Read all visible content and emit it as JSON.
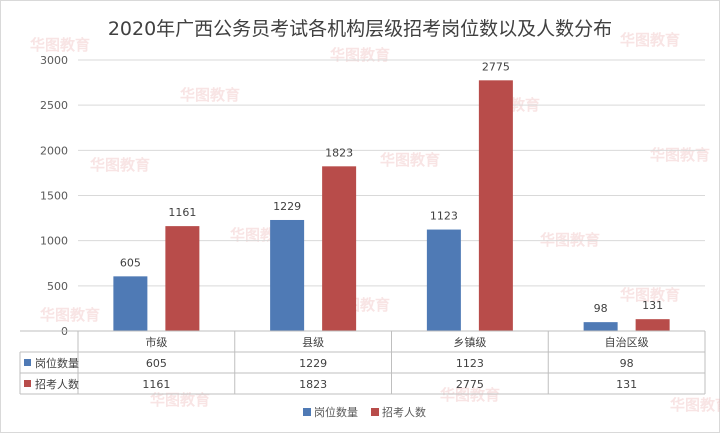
{
  "chart_data": {
    "type": "bar",
    "title": "2020年广西公务员考试各机构层级招考岗位数以及人数分布",
    "categories": [
      "市级",
      "县级",
      "乡镇级",
      "自治区级"
    ],
    "series": [
      {
        "name": "岗位数量",
        "values": [
          605,
          1229,
          1123,
          98
        ],
        "color": "#4f7ab5"
      },
      {
        "name": "招考人数",
        "values": [
          1161,
          1823,
          2775,
          131
        ],
        "color": "#b84c4a"
      }
    ],
    "ylim": [
      0,
      3000
    ],
    "yticks": [
      0,
      500,
      1000,
      1500,
      2000,
      2500,
      3000
    ],
    "grid": true,
    "legend": "bottom",
    "data_table": true
  },
  "watermark": "华图教育"
}
